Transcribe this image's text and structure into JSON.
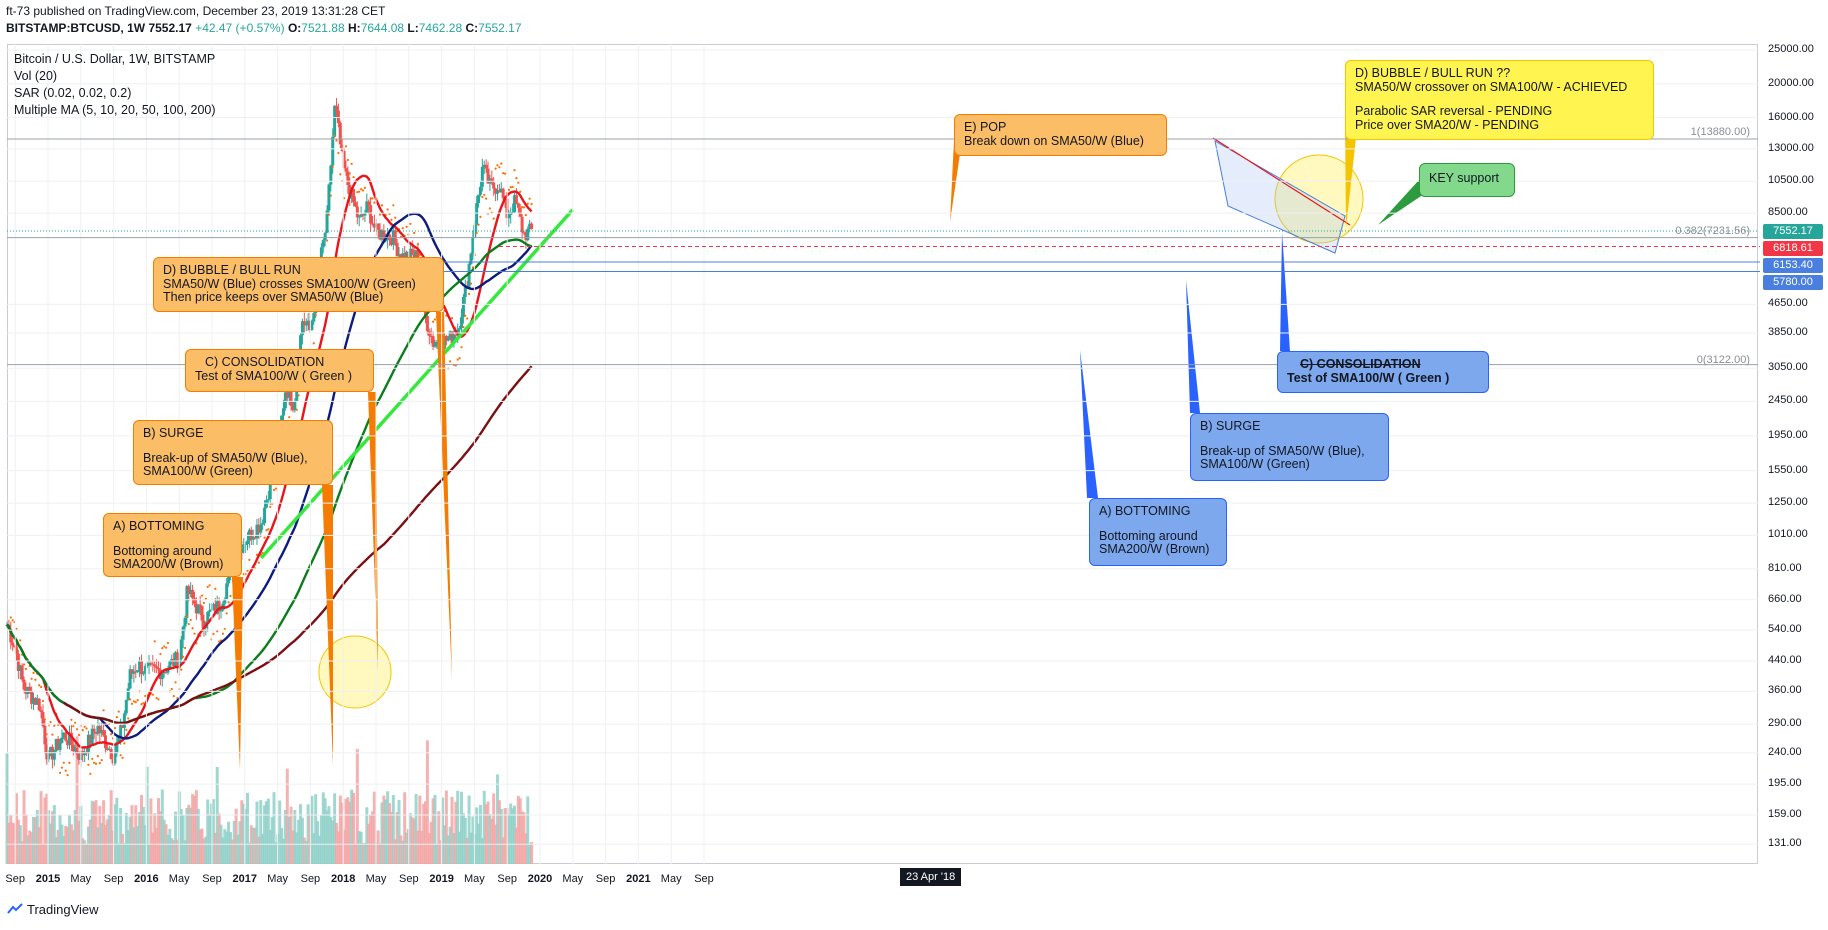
{
  "header": {
    "publisher_line": "ft-73 published on TradingView.com, December 23, 2019 13:31:28 CET",
    "symbol": "BITSTAMP:BTCUSD, 1W",
    "price": "7552.17",
    "change": "+42.47 (+0.57%)",
    "open": "7521.88",
    "high": "7644.08",
    "low": "7462.28",
    "close": "7552.17"
  },
  "legend": {
    "title": "Bitcoin / U.S. Dollar, 1W, BITSTAMP",
    "vol": "Vol (20)",
    "sar": "SAR (0.02, 0.02, 0.2)",
    "ma": "Multiple MA (5, 10, 20, 50, 100, 200)"
  },
  "annotations": {
    "left_a_title": "A) BOTTOMING",
    "left_a_body1": "Bottoming around",
    "left_a_body2": "SMA200/W (Brown)",
    "left_b_title": "B) SURGE",
    "left_b_body1": "Break-up of SMA50/W (Blue),",
    "left_b_body2": "SMA100/W (Green)",
    "left_c_title": "C) CONSOLIDATION",
    "left_c_body": "Test of SMA100/W ( Green )",
    "left_d_title": "D) BUBBLE / BULL RUN",
    "left_d_body1": "SMA50/W (Blue) crosses SMA100/W (Green)",
    "left_d_body2": "Then price keeps over SMA50/W (Blue)",
    "pop_title": "E) POP",
    "pop_body": "Break down on SMA50/W (Blue)",
    "right_a_title": "A) BOTTOMING",
    "right_a_body1": "Bottoming around",
    "right_a_body2": "SMA200/W (Brown)",
    "right_b_title": "B) SURGE",
    "right_b_body1": "Break-up of SMA50/W (Blue),",
    "right_b_body2": "SMA100/W (Green)",
    "right_c_title": "C) CONSOLIDATION",
    "right_c_body": "Test of SMA100/W ( Green )",
    "right_d_title": "D) BUBBLE / BULL RUN ??",
    "right_d_line1": "SMA50/W crossover on SMA100/W - ACHIEVED",
    "right_d_line2": "Parabolic SAR reversal - PENDING",
    "right_d_line3": "Price over SMA20/W - PENDING",
    "key": "KEY support"
  },
  "price_levels": {
    "fib_1": "1(13880.00)",
    "fib_0382": "0.382(7231.56)",
    "fib_0": "0(3122.00)"
  },
  "badges": [
    {
      "label": "7552.17",
      "color": "#26a69a"
    },
    {
      "label": "6818.61",
      "color": "#f23645"
    },
    {
      "label": "6153.40",
      "color": "#4a7fe0"
    },
    {
      "label": "5780.00",
      "color": "#4a7fe0"
    }
  ],
  "footer": {
    "brand": "TradingView"
  },
  "chart_data": {
    "type": "candlestick",
    "title": "Bitcoin / U.S. Dollar, 1W, BITSTAMP",
    "y_scale": "log",
    "ylim": [
      115,
      25000
    ],
    "y_ticks": [
      "25000.00",
      "20000.00",
      "16000.00",
      "13000.00",
      "10500.00",
      "8500.00",
      "4650.00",
      "3850.00",
      "3050.00",
      "2450.00",
      "1950.00",
      "1550.00",
      "1250.00",
      "1010.00",
      "810.00",
      "660.00",
      "540.00",
      "440.00",
      "360.00",
      "290.00",
      "240.00",
      "195.00",
      "159.00",
      "131.00"
    ],
    "x_ticks": [
      "Sep",
      "2015",
      "May",
      "Sep",
      "2016",
      "May",
      "Sep",
      "2017",
      "May",
      "Sep",
      "2018",
      "May",
      "Sep",
      "2019",
      "May",
      "Sep",
      "2020",
      "May",
      "Sep",
      "2021",
      "May",
      "Sep"
    ],
    "x_crosshair_label": "23 Apr '18",
    "price_path": [
      [
        "2014-08",
        560
      ],
      [
        "2014-09",
        480
      ],
      [
        "2014-10",
        370
      ],
      [
        "2014-12",
        330
      ],
      [
        "2015-01",
        230
      ],
      [
        "2015-03",
        270
      ],
      [
        "2015-05",
        235
      ],
      [
        "2015-07",
        285
      ],
      [
        "2015-09",
        235
      ],
      [
        "2015-10",
        280
      ],
      [
        "2015-11",
        400
      ],
      [
        "2015-12",
        430
      ],
      [
        "2016-01",
        410
      ],
      [
        "2016-03",
        415
      ],
      [
        "2016-05",
        450
      ],
      [
        "2016-06",
        700
      ],
      [
        "2016-08",
        580
      ],
      [
        "2016-10",
        640
      ],
      [
        "2016-12",
        900
      ],
      [
        "2017-01",
        980
      ],
      [
        "2017-03",
        1100
      ],
      [
        "2017-05",
        1800
      ],
      [
        "2017-06",
        2700
      ],
      [
        "2017-07",
        2400
      ],
      [
        "2017-08",
        4200
      ],
      [
        "2017-09",
        3900
      ],
      [
        "2017-10",
        5800
      ],
      [
        "2017-11",
        8000
      ],
      [
        "2017-12",
        17500
      ],
      [
        "2018-01",
        11500
      ],
      [
        "2018-02",
        9500
      ],
      [
        "2018-03",
        8000
      ],
      [
        "2018-04",
        8900
      ],
      [
        "2018-05",
        7500
      ],
      [
        "2018-07",
        7300
      ],
      [
        "2018-08",
        6400
      ],
      [
        "2018-10",
        6400
      ],
      [
        "2018-11",
        4300
      ],
      [
        "2018-12",
        3600
      ],
      [
        "2019-02",
        3700
      ],
      [
        "2019-03",
        4000
      ],
      [
        "2019-04",
        5200
      ],
      [
        "2019-05",
        8000
      ],
      [
        "2019-06",
        11500
      ],
      [
        "2019-07",
        10000
      ],
      [
        "2019-08",
        10300
      ],
      [
        "2019-09",
        8400
      ],
      [
        "2019-10",
        9200
      ],
      [
        "2019-11",
        7400
      ],
      [
        "2019-12",
        7552
      ]
    ],
    "series": [
      {
        "name": "SMA50/W (Blue)",
        "color": "#0d1b7d"
      },
      {
        "name": "SMA100/W (Green)",
        "color": "#0b7d1c"
      },
      {
        "name": "SMA200/W (Brown)",
        "color": "#7b0f12"
      },
      {
        "name": "SMA20/W",
        "color": "#e8151b"
      },
      {
        "name": "KEY support",
        "color": "#36e83e"
      },
      {
        "name": "Parabolic SAR",
        "color": "#ff6d00"
      }
    ],
    "volume_colors": {
      "up": "#8fd0c8",
      "down": "#f3a5a5"
    }
  }
}
